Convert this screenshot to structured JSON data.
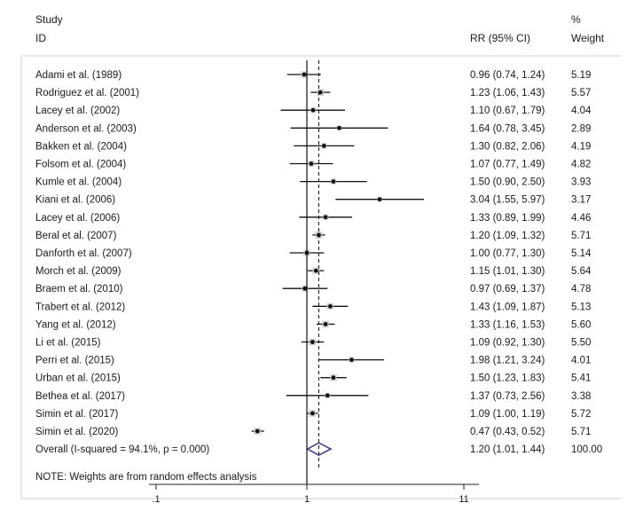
{
  "chart_data": {
    "type": "forest",
    "x_scale": "log",
    "header": {
      "study_line1": "Study",
      "study_line2": "ID",
      "rr_col": "RR (95% CI)",
      "weight_line1": "%",
      "weight_line2": "Weight"
    },
    "x_ticks": [
      {
        "value": 0.1,
        "label": ".1"
      },
      {
        "value": 1,
        "label": "1"
      },
      {
        "value": 11,
        "label": "11"
      }
    ],
    "studies": [
      {
        "name": "Adami et al. (1989)",
        "rr": 0.96,
        "lo": 0.74,
        "hi": 1.24,
        "ci_text": "0.96 (0.74, 1.24)",
        "weight": "5.19"
      },
      {
        "name": "Rodriguez et al. (2001)",
        "rr": 1.23,
        "lo": 1.06,
        "hi": 1.43,
        "ci_text": "1.23 (1.06, 1.43)",
        "weight": "5.57"
      },
      {
        "name": "Lacey et al. (2002)",
        "rr": 1.1,
        "lo": 0.67,
        "hi": 1.79,
        "ci_text": "1.10 (0.67, 1.79)",
        "weight": "4.04"
      },
      {
        "name": "Anderson et al. (2003)",
        "rr": 1.64,
        "lo": 0.78,
        "hi": 3.45,
        "ci_text": "1.64 (0.78, 3.45)",
        "weight": "2.89"
      },
      {
        "name": "Bakken et al. (2004)",
        "rr": 1.3,
        "lo": 0.82,
        "hi": 2.06,
        "ci_text": "1.30 (0.82, 2.06)",
        "weight": "4.19"
      },
      {
        "name": "Folsom et al. (2004)",
        "rr": 1.07,
        "lo": 0.77,
        "hi": 1.49,
        "ci_text": "1.07 (0.77, 1.49)",
        "weight": "4.82"
      },
      {
        "name": "Kumle et al. (2004)",
        "rr": 1.5,
        "lo": 0.9,
        "hi": 2.5,
        "ci_text": "1.50 (0.90, 2.50)",
        "weight": "3.93"
      },
      {
        "name": "Kiani et al. (2006)",
        "rr": 3.04,
        "lo": 1.55,
        "hi": 5.97,
        "ci_text": "3.04 (1.55, 5.97)",
        "weight": "3.17"
      },
      {
        "name": "Lacey et al. (2006)",
        "rr": 1.33,
        "lo": 0.89,
        "hi": 1.99,
        "ci_text": "1.33 (0.89, 1.99)",
        "weight": "4.46"
      },
      {
        "name": "Beral et al. (2007)",
        "rr": 1.2,
        "lo": 1.09,
        "hi": 1.32,
        "ci_text": "1.20 (1.09, 1.32)",
        "weight": "5.71"
      },
      {
        "name": "Danforth et al. (2007)",
        "rr": 1.0,
        "lo": 0.77,
        "hi": 1.3,
        "ci_text": "1.00 (0.77, 1.30)",
        "weight": "5.14"
      },
      {
        "name": "Morch et al. (2009)",
        "rr": 1.15,
        "lo": 1.01,
        "hi": 1.3,
        "ci_text": "1.15 (1.01, 1.30)",
        "weight": "5.64"
      },
      {
        "name": "Braem et al. (2010)",
        "rr": 0.97,
        "lo": 0.69,
        "hi": 1.37,
        "ci_text": "0.97 (0.69, 1.37)",
        "weight": "4.78"
      },
      {
        "name": "Trabert et al. (2012)",
        "rr": 1.43,
        "lo": 1.09,
        "hi": 1.87,
        "ci_text": "1.43 (1.09, 1.87)",
        "weight": "5.13"
      },
      {
        "name": "Yang et al. (2012)",
        "rr": 1.33,
        "lo": 1.16,
        "hi": 1.53,
        "ci_text": "1.33 (1.16, 1.53)",
        "weight": "5.60"
      },
      {
        "name": "Li et al. (2015)",
        "rr": 1.09,
        "lo": 0.92,
        "hi": 1.3,
        "ci_text": "1.09 (0.92, 1.30)",
        "weight": "5.50"
      },
      {
        "name": "Perri et al. (2015)",
        "rr": 1.98,
        "lo": 1.21,
        "hi": 3.24,
        "ci_text": "1.98 (1.21, 3.24)",
        "weight": "4.01"
      },
      {
        "name": "Urban et al. (2015)",
        "rr": 1.5,
        "lo": 1.23,
        "hi": 1.83,
        "ci_text": "1.50 (1.23, 1.83)",
        "weight": "5.41"
      },
      {
        "name": "Bethea et al. (2017)",
        "rr": 1.37,
        "lo": 0.73,
        "hi": 2.56,
        "ci_text": "1.37 (0.73, 2.56)",
        "weight": "3.38"
      },
      {
        "name": "Simin et al. (2017)",
        "rr": 1.09,
        "lo": 1.0,
        "hi": 1.19,
        "ci_text": "1.09 (1.00, 1.19)",
        "weight": "5.72"
      },
      {
        "name": "Simin et al. (2020)",
        "rr": 0.47,
        "lo": 0.43,
        "hi": 0.52,
        "ci_text": "0.47 (0.43, 0.52)",
        "weight": "5.71"
      }
    ],
    "overall": {
      "label": "Overall  (I-squared = 94.1%, p = 0.000)",
      "rr": 1.2,
      "lo": 1.01,
      "hi": 1.44,
      "ci_text": "1.20 (1.01, 1.44)",
      "weight": "100.00"
    },
    "note": "NOTE: Weights are from random effects analysis",
    "colors": {
      "diamond": "#3b3f9a",
      "marks": "#111111",
      "box": "#c8c8c8"
    }
  }
}
